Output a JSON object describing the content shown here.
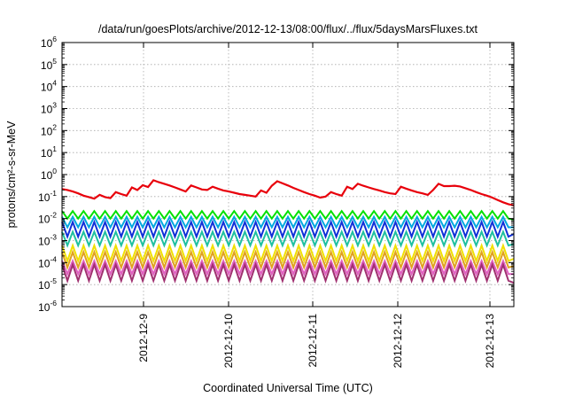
{
  "chart_data": {
    "type": "line",
    "title": "/data/run/goesPlots/archive/2012-12-13/08:00/flux/../flux/5daysMarsFluxes.txt",
    "xlabel": "Coordinated Universal Time (UTC)",
    "ylabel": "protons/cm²-s-sr-MeV",
    "yscale": "log",
    "ylim": [
      1e-06,
      1000000.0
    ],
    "xlim": [
      "2012-12-08 08:00",
      "2012-12-13 08:00"
    ],
    "x_ticks": [
      "2012-12-9",
      "2012-12-10",
      "2012-12-11",
      "2012-12-12",
      "2012-12-13"
    ],
    "y_ticks": [
      {
        "base": "10",
        "exp": "6"
      },
      {
        "base": "10",
        "exp": "5"
      },
      {
        "base": "10",
        "exp": "4"
      },
      {
        "base": "10",
        "exp": "3"
      },
      {
        "base": "10",
        "exp": "2"
      },
      {
        "base": "10",
        "exp": "1"
      },
      {
        "base": "10",
        "exp": "0"
      },
      {
        "base": "10",
        "exp": "-1"
      },
      {
        "base": "10",
        "exp": "-2"
      },
      {
        "base": "10",
        "exp": "-3"
      },
      {
        "base": "10",
        "exp": "-4"
      },
      {
        "base": "10",
        "exp": "-5"
      },
      {
        "base": "10",
        "exp": "-6"
      }
    ],
    "grid": true,
    "legend": "none",
    "series": [
      {
        "color": "#e8000b",
        "values": [
          0.22,
          0.2,
          0.17,
          0.14,
          0.11,
          0.095,
          0.08,
          0.12,
          0.095,
          0.085,
          0.16,
          0.13,
          0.11,
          0.26,
          0.2,
          0.33,
          0.27,
          0.55,
          0.45,
          0.38,
          0.32,
          0.26,
          0.21,
          0.17,
          0.32,
          0.26,
          0.21,
          0.2,
          0.28,
          0.23,
          0.19,
          0.17,
          0.15,
          0.13,
          0.12,
          0.11,
          0.1,
          0.19,
          0.15,
          0.31,
          0.5,
          0.4,
          0.32,
          0.25,
          0.2,
          0.16,
          0.13,
          0.11,
          0.09,
          0.1,
          0.16,
          0.13,
          0.11,
          0.28,
          0.22,
          0.38,
          0.31,
          0.26,
          0.22,
          0.19,
          0.16,
          0.14,
          0.13,
          0.28,
          0.23,
          0.19,
          0.16,
          0.14,
          0.12,
          0.2,
          0.38,
          0.3,
          0.3,
          0.31,
          0.29,
          0.24,
          0.2,
          0.16,
          0.13,
          0.11,
          0.09,
          0.07,
          0.055,
          0.045,
          0.04
        ]
      },
      {
        "color": "#00e000",
        "values": [
          0.022,
          0.01,
          0.022,
          0.01,
          0.022,
          0.01,
          0.022,
          0.01,
          0.022,
          0.01,
          0.022,
          0.01,
          0.022,
          0.01,
          0.022,
          0.01,
          0.022,
          0.01,
          0.022,
          0.01,
          0.022,
          0.01,
          0.022,
          0.01,
          0.022,
          0.01,
          0.022,
          0.01,
          0.022,
          0.01,
          0.022,
          0.01,
          0.022,
          0.01,
          0.022,
          0.01,
          0.022,
          0.01,
          0.022,
          0.01,
          0.022,
          0.01,
          0.022,
          0.01,
          0.022,
          0.01,
          0.022,
          0.01,
          0.022,
          0.01,
          0.022,
          0.01,
          0.022,
          0.01,
          0.022,
          0.01,
          0.022,
          0.01,
          0.022,
          0.01,
          0.022,
          0.01,
          0.022,
          0.01,
          0.022,
          0.01,
          0.022,
          0.01,
          0.022,
          0.01,
          0.022,
          0.01,
          0.022,
          0.01,
          0.022,
          0.01,
          0.022,
          0.01,
          0.022,
          0.01,
          0.022,
          0.01,
          0.022,
          0.01,
          0.009
        ]
      },
      {
        "color": "#00a8e0",
        "values": [
          0.012,
          0.004,
          0.012,
          0.004,
          0.012,
          0.004,
          0.012,
          0.004,
          0.012,
          0.004,
          0.012,
          0.004,
          0.012,
          0.004,
          0.012,
          0.004,
          0.012,
          0.004,
          0.012,
          0.004,
          0.012,
          0.004,
          0.012,
          0.004,
          0.012,
          0.004,
          0.012,
          0.004,
          0.012,
          0.004,
          0.012,
          0.004,
          0.012,
          0.004,
          0.012,
          0.004,
          0.012,
          0.004,
          0.012,
          0.004,
          0.012,
          0.004,
          0.012,
          0.004,
          0.012,
          0.004,
          0.012,
          0.004,
          0.012,
          0.004,
          0.012,
          0.004,
          0.012,
          0.004,
          0.012,
          0.004,
          0.012,
          0.004,
          0.012,
          0.004,
          0.012,
          0.004,
          0.012,
          0.004,
          0.012,
          0.004,
          0.012,
          0.004,
          0.012,
          0.004,
          0.012,
          0.004,
          0.012,
          0.004,
          0.012,
          0.004,
          0.012,
          0.004,
          0.012,
          0.004,
          0.012,
          0.004,
          0.012,
          0.004,
          0.004
        ]
      },
      {
        "color": "#1030d8",
        "values": [
          0.007,
          0.0015,
          0.007,
          0.0015,
          0.007,
          0.0015,
          0.007,
          0.0015,
          0.007,
          0.0015,
          0.007,
          0.0015,
          0.007,
          0.0015,
          0.007,
          0.0015,
          0.007,
          0.0015,
          0.007,
          0.0015,
          0.007,
          0.0015,
          0.007,
          0.0015,
          0.007,
          0.0015,
          0.007,
          0.0015,
          0.007,
          0.0015,
          0.007,
          0.0015,
          0.007,
          0.0015,
          0.007,
          0.0015,
          0.007,
          0.0015,
          0.007,
          0.0015,
          0.007,
          0.0015,
          0.007,
          0.0015,
          0.007,
          0.0015,
          0.007,
          0.0015,
          0.007,
          0.0015,
          0.007,
          0.0015,
          0.007,
          0.0015,
          0.007,
          0.0015,
          0.007,
          0.0015,
          0.007,
          0.0015,
          0.007,
          0.0015,
          0.007,
          0.0015,
          0.007,
          0.0015,
          0.007,
          0.0015,
          0.007,
          0.0015,
          0.007,
          0.0015,
          0.007,
          0.0015,
          0.007,
          0.0015,
          0.007,
          0.0015,
          0.007,
          0.0015,
          0.007,
          0.0015,
          0.007,
          0.0015,
          0.002
        ]
      },
      {
        "color": "#20c0a0",
        "values": [
          0.0025,
          0.0006,
          0.0025,
          0.0006,
          0.0025,
          0.0006,
          0.0025,
          0.0006,
          0.0025,
          0.0006,
          0.0025,
          0.0006,
          0.0025,
          0.0006,
          0.0025,
          0.0006,
          0.0025,
          0.0006,
          0.0025,
          0.0006,
          0.0025,
          0.0006,
          0.0025,
          0.0006,
          0.0025,
          0.0006,
          0.0025,
          0.0006,
          0.0025,
          0.0006,
          0.0025,
          0.0006,
          0.0025,
          0.0006,
          0.0025,
          0.0006,
          0.0025,
          0.0006,
          0.0025,
          0.0006,
          0.0025,
          0.0006,
          0.0025,
          0.0006,
          0.0025,
          0.0006,
          0.0025,
          0.0006,
          0.0025,
          0.0006,
          0.0025,
          0.0006,
          0.0025,
          0.0006,
          0.0025,
          0.0006,
          0.0025,
          0.0006,
          0.0025,
          0.0006,
          0.0025,
          0.0006,
          0.0025,
          0.0006,
          0.0025,
          0.0006,
          0.0025,
          0.0006,
          0.0025,
          0.0006,
          0.0025,
          0.0006,
          0.0025,
          0.0006,
          0.0025,
          0.0006,
          0.0025,
          0.0006,
          0.0025,
          0.0006,
          0.0025,
          0.0006,
          0.0025,
          0.0006,
          0.0007
        ]
      },
      {
        "color": "#f0e000",
        "values": [
          0.0006,
          0.00012,
          0.0006,
          0.00012,
          0.0006,
          0.00012,
          0.0006,
          0.00012,
          0.0006,
          0.00012,
          0.0006,
          0.00012,
          0.0006,
          0.00012,
          0.0006,
          0.00012,
          0.0006,
          0.00012,
          0.0006,
          0.00012,
          0.0006,
          0.00012,
          0.0006,
          0.00012,
          0.0006,
          0.00012,
          0.0006,
          0.00012,
          0.0006,
          0.00012,
          0.0006,
          0.00012,
          0.0006,
          0.00012,
          0.0006,
          0.00012,
          0.0006,
          0.00012,
          0.0006,
          0.00012,
          0.0006,
          0.00012,
          0.0006,
          0.00012,
          0.0006,
          0.00012,
          0.0006,
          0.00012,
          0.0006,
          0.00012,
          0.0006,
          0.00012,
          0.0006,
          0.00012,
          0.0006,
          0.00012,
          0.0006,
          0.00012,
          0.0006,
          0.00012,
          0.0006,
          0.00012,
          0.0006,
          0.00012,
          0.0006,
          0.00012,
          0.0006,
          0.00012,
          0.0006,
          0.00012,
          0.0006,
          0.00012,
          0.0006,
          0.00012,
          0.0006,
          0.00012,
          0.0006,
          0.00012,
          0.0006,
          0.00012,
          0.0006,
          0.00012,
          0.0006,
          0.00012,
          0.00015
        ]
      },
      {
        "color": "#e0a020",
        "values": [
          0.0003,
          6e-05,
          0.0003,
          6e-05,
          0.0003,
          6e-05,
          0.0003,
          6e-05,
          0.0003,
          6e-05,
          0.0003,
          6e-05,
          0.0003,
          6e-05,
          0.0003,
          6e-05,
          0.0003,
          6e-05,
          0.0003,
          6e-05,
          0.0003,
          6e-05,
          0.0003,
          6e-05,
          0.0003,
          6e-05,
          0.0003,
          6e-05,
          0.0003,
          6e-05,
          0.0003,
          6e-05,
          0.0003,
          6e-05,
          0.0003,
          6e-05,
          0.0003,
          6e-05,
          0.0003,
          6e-05,
          0.0003,
          6e-05,
          0.0003,
          6e-05,
          0.0003,
          6e-05,
          0.0003,
          6e-05,
          0.0003,
          6e-05,
          0.0003,
          6e-05,
          0.0003,
          6e-05,
          0.0003,
          6e-05,
          0.0003,
          6e-05,
          0.0003,
          6e-05,
          0.0003,
          6e-05,
          0.0003,
          6e-05,
          0.0003,
          6e-05,
          0.0003,
          6e-05,
          0.0003,
          6e-05,
          0.0003,
          6e-05,
          0.0003,
          6e-05,
          0.0003,
          6e-05,
          0.0003,
          6e-05,
          0.0003,
          6e-05,
          0.0003,
          6e-05,
          0.0003,
          6e-05,
          7e-05
        ]
      },
      {
        "color": "#e060c0",
        "values": [
          0.00012,
          3e-05,
          0.00012,
          3e-05,
          0.00012,
          3e-05,
          0.00012,
          3e-05,
          0.00012,
          3e-05,
          0.00012,
          3e-05,
          0.00012,
          3e-05,
          0.00012,
          3e-05,
          0.00012,
          3e-05,
          0.00012,
          3e-05,
          0.00012,
          3e-05,
          0.00012,
          3e-05,
          0.00012,
          3e-05,
          0.00012,
          3e-05,
          0.00012,
          3e-05,
          0.00012,
          3e-05,
          0.00012,
          3e-05,
          0.00012,
          3e-05,
          0.00012,
          3e-05,
          0.00012,
          3e-05,
          0.00012,
          3e-05,
          0.00012,
          3e-05,
          0.00012,
          3e-05,
          0.00012,
          3e-05,
          0.00012,
          3e-05,
          0.00012,
          3e-05,
          0.00012,
          3e-05,
          0.00012,
          3e-05,
          0.00012,
          3e-05,
          0.00012,
          3e-05,
          0.00012,
          3e-05,
          0.00012,
          3e-05,
          0.00012,
          3e-05,
          0.00012,
          3e-05,
          0.00012,
          3e-05,
          0.00012,
          3e-05,
          0.00012,
          3e-05,
          0.00012,
          3e-05,
          0.00012,
          3e-05,
          0.00012,
          3e-05,
          0.00012,
          3e-05,
          0.00012,
          3e-05,
          3e-05
        ]
      },
      {
        "color": "#a03070",
        "values": [
          8e-05,
          1.5e-05,
          8e-05,
          1.5e-05,
          8e-05,
          1.5e-05,
          8e-05,
          1.5e-05,
          8e-05,
          1.5e-05,
          8e-05,
          1.5e-05,
          8e-05,
          1.5e-05,
          8e-05,
          1.5e-05,
          8e-05,
          1.5e-05,
          8e-05,
          1.5e-05,
          8e-05,
          1.5e-05,
          8e-05,
          1.5e-05,
          8e-05,
          1.5e-05,
          8e-05,
          1.5e-05,
          8e-05,
          1.5e-05,
          8e-05,
          1.5e-05,
          8e-05,
          1.5e-05,
          8e-05,
          1.5e-05,
          8e-05,
          1.5e-05,
          8e-05,
          1.5e-05,
          8e-05,
          1.5e-05,
          8e-05,
          1.5e-05,
          8e-05,
          1.5e-05,
          8e-05,
          1.5e-05,
          8e-05,
          1.5e-05,
          8e-05,
          1.5e-05,
          8e-05,
          1.5e-05,
          8e-05,
          1.5e-05,
          8e-05,
          1.5e-05,
          8e-05,
          1.5e-05,
          8e-05,
          1.5e-05,
          8e-05,
          1.5e-05,
          8e-05,
          1.5e-05,
          8e-05,
          1.5e-05,
          8e-05,
          1.5e-05,
          8e-05,
          1.5e-05,
          8e-05,
          1.5e-05,
          8e-05,
          1.5e-05,
          8e-05,
          1.5e-05,
          8e-05,
          1.5e-05,
          8e-05,
          1.5e-05,
          8e-05,
          1.5e-05,
          1.2e-05
        ]
      }
    ]
  }
}
